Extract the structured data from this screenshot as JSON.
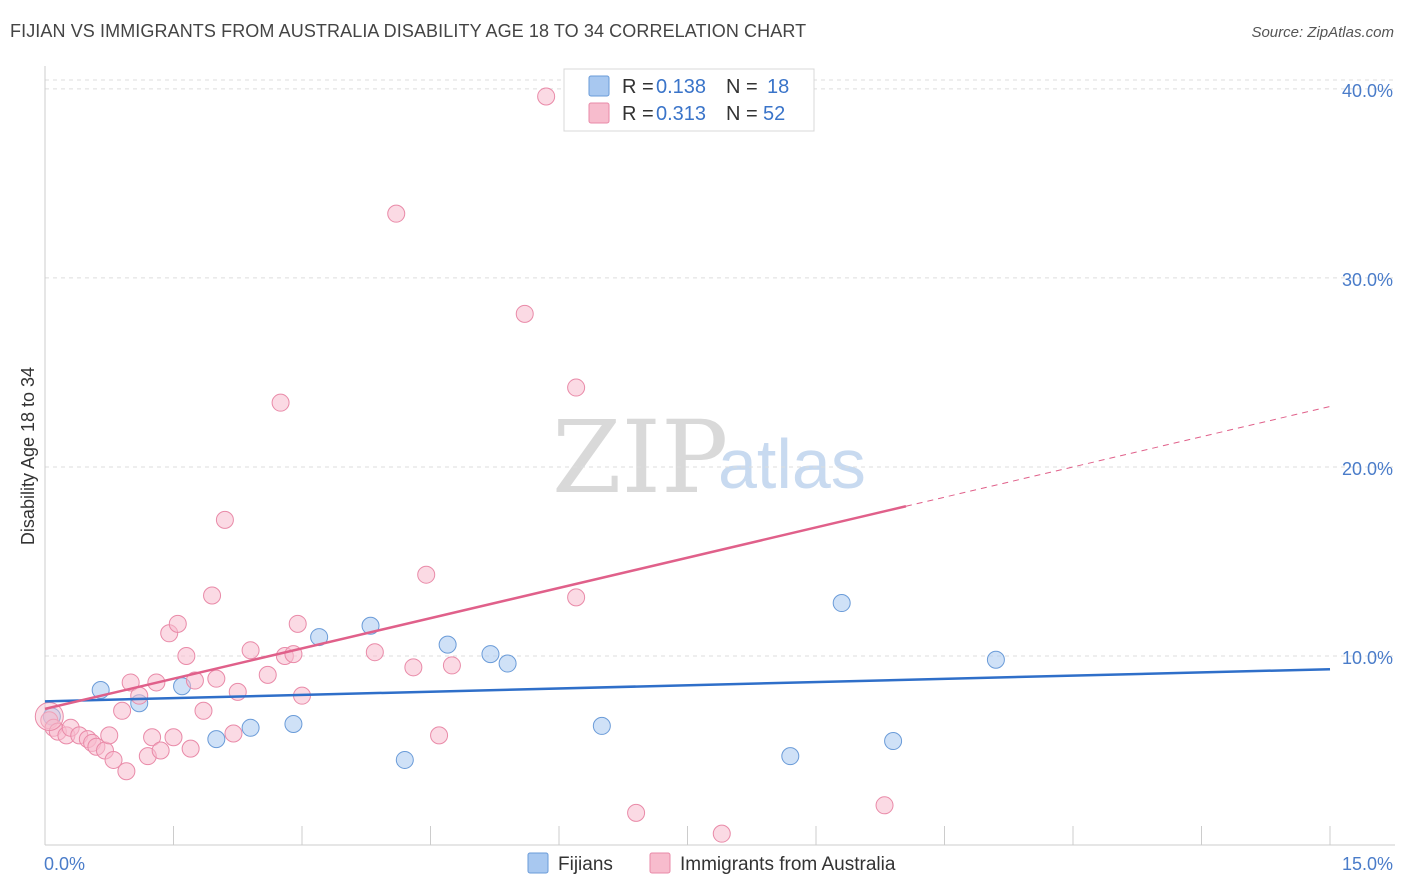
{
  "header": {
    "title": "FIJIAN VS IMMIGRANTS FROM AUSTRALIA DISABILITY AGE 18 TO 34 CORRELATION CHART",
    "source": "Source: ZipAtlas.com"
  },
  "watermark": {
    "part1": "ZIP",
    "part2": "atlas"
  },
  "legend": {
    "rows": [
      {
        "r_label": "R =",
        "r_value": "0.138",
        "n_label": "N =",
        "n_value": "18",
        "color": "#a8c8f0",
        "stroke": "#6a9bd8"
      },
      {
        "r_label": "R =",
        "r_value": "0.313",
        "n_label": "N =",
        "n_value": "52",
        "color": "#f7bccd",
        "stroke": "#e98aa8"
      }
    ]
  },
  "chart_data": {
    "type": "scatter",
    "title": "FIJIAN VS IMMIGRANTS FROM AUSTRALIA DISABILITY AGE 18 TO 34 CORRELATION CHART",
    "xlabel": "",
    "ylabel": "Disability Age 18 to 34",
    "xlim": [
      0,
      15
    ],
    "ylim": [
      0,
      41
    ],
    "x_tick_labels": [
      "0.0%",
      "15.0%"
    ],
    "y_ticks": [
      10,
      20,
      30,
      40
    ],
    "y_tick_labels": [
      "10.0%",
      "20.0%",
      "30.0%",
      "40.0%"
    ],
    "series": [
      {
        "name": "Fijians",
        "color": "#a8c8f0",
        "stroke": "#6a9bd8",
        "line_color": "#2f6fc9",
        "trend": {
          "x0": 0,
          "y0": 7.6,
          "x1": 15,
          "y1": 9.3,
          "solid_to": 15
        },
        "points": [
          [
            0.08,
            6.8
          ],
          [
            0.65,
            8.2
          ],
          [
            1.1,
            7.5
          ],
          [
            1.6,
            8.4
          ],
          [
            2.0,
            5.6
          ],
          [
            2.4,
            6.2
          ],
          [
            2.9,
            6.4
          ],
          [
            3.2,
            11.0
          ],
          [
            3.8,
            11.6
          ],
          [
            4.2,
            4.5
          ],
          [
            4.7,
            10.6
          ],
          [
            5.2,
            10.1
          ],
          [
            5.4,
            9.6
          ],
          [
            6.5,
            6.3
          ],
          [
            8.7,
            4.7
          ],
          [
            9.3,
            12.8
          ],
          [
            9.9,
            5.5
          ],
          [
            11.1,
            9.8
          ]
        ]
      },
      {
        "name": "Immigrants from Australia",
        "color": "#f7bccd",
        "stroke": "#e98aa8",
        "line_color": "#e0608a",
        "trend": {
          "x0": 0,
          "y0": 7.2,
          "x1": 15,
          "y1": 23.2,
          "solid_to": 10.05
        },
        "points": [
          [
            0.05,
            6.6
          ],
          [
            0.1,
            6.2
          ],
          [
            0.15,
            6.0
          ],
          [
            0.25,
            5.8
          ],
          [
            0.3,
            6.2
          ],
          [
            0.4,
            5.8
          ],
          [
            0.5,
            5.6
          ],
          [
            0.55,
            5.4
          ],
          [
            0.6,
            5.2
          ],
          [
            0.7,
            5.0
          ],
          [
            0.75,
            5.8
          ],
          [
            0.8,
            4.5
          ],
          [
            0.9,
            7.1
          ],
          [
            0.95,
            3.9
          ],
          [
            1.0,
            8.6
          ],
          [
            1.1,
            7.9
          ],
          [
            1.2,
            4.7
          ],
          [
            1.25,
            5.7
          ],
          [
            1.3,
            8.6
          ],
          [
            1.35,
            5.0
          ],
          [
            1.45,
            11.2
          ],
          [
            1.5,
            5.7
          ],
          [
            1.55,
            11.7
          ],
          [
            1.65,
            10.0
          ],
          [
            1.7,
            5.1
          ],
          [
            1.75,
            8.7
          ],
          [
            1.85,
            7.1
          ],
          [
            1.95,
            13.2
          ],
          [
            2.0,
            8.8
          ],
          [
            2.1,
            17.2
          ],
          [
            2.2,
            5.9
          ],
          [
            2.25,
            8.1
          ],
          [
            2.4,
            10.3
          ],
          [
            2.6,
            9.0
          ],
          [
            2.75,
            23.4
          ],
          [
            2.8,
            10.0
          ],
          [
            2.9,
            10.1
          ],
          [
            2.95,
            11.7
          ],
          [
            3.0,
            7.9
          ],
          [
            3.85,
            10.2
          ],
          [
            4.1,
            33.4
          ],
          [
            4.3,
            9.4
          ],
          [
            4.45,
            14.3
          ],
          [
            4.6,
            5.8
          ],
          [
            4.75,
            9.5
          ],
          [
            5.6,
            28.1
          ],
          [
            5.85,
            39.6
          ],
          [
            6.2,
            13.1
          ],
          [
            6.2,
            24.2
          ],
          [
            6.9,
            1.7
          ],
          [
            7.9,
            0.6
          ],
          [
            9.8,
            2.1
          ]
        ]
      }
    ]
  },
  "bottom_legend": {
    "items": [
      "Fijians",
      "Immigrants from Australia"
    ]
  }
}
